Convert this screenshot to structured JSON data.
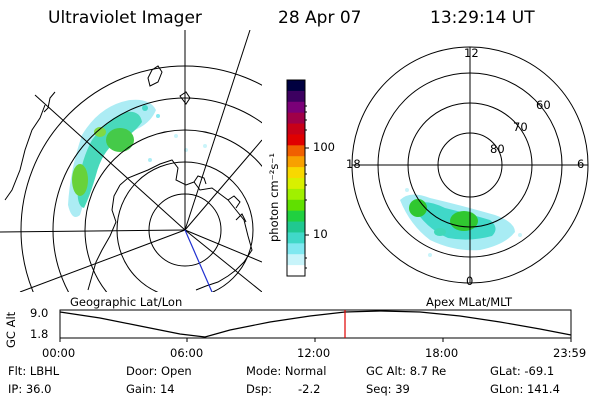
{
  "header": {
    "instrument": "Ultraviolet Imager",
    "date": "28 Apr 07",
    "time": "13:29:14 UT"
  },
  "colorbar": {
    "unit_label": "photon cm⁻²s⁻¹",
    "tick_labels": [
      "100",
      "10"
    ],
    "colors": [
      "#000040",
      "#3c0060",
      "#7a0078",
      "#a00048",
      "#c80018",
      "#e00000",
      "#f06000",
      "#f8a000",
      "#f8d800",
      "#d8f000",
      "#a0f000",
      "#60e000",
      "#20d040",
      "#20c890",
      "#40d8c8",
      "#80e8f0",
      "#c8f4fa",
      "#ffffff"
    ]
  },
  "geo_map": {
    "label": "Geographic Lat/Lon"
  },
  "polar_map": {
    "label": "Apex MLat/MLT",
    "mlt_labels": {
      "top": "12",
      "left": "18",
      "right": "6",
      "bottom": "0"
    },
    "mlat_labels": [
      "60",
      "70",
      "80"
    ]
  },
  "altitude_plot": {
    "axis_label": "GC Alt",
    "y_ticks": [
      "9.0",
      "1.8"
    ],
    "x_ticks": [
      "00:00",
      "06:00",
      "12:00",
      "18:00",
      "23:59"
    ],
    "current_marker_color": "#e00000"
  },
  "footer": {
    "flt": "Flt: LBHL",
    "ip": "IP: 36.0",
    "door": "Door: Open",
    "gain": "Gain: 14",
    "mode": "Mode: Normal",
    "dsp": "Dsp:",
    "dsp_value": "-2.2",
    "gc_alt": "GC Alt: 8.7 Re",
    "seq": "Seq: 39",
    "glat": "GLat: -69.1",
    "glon": "GLon: 141.4"
  }
}
